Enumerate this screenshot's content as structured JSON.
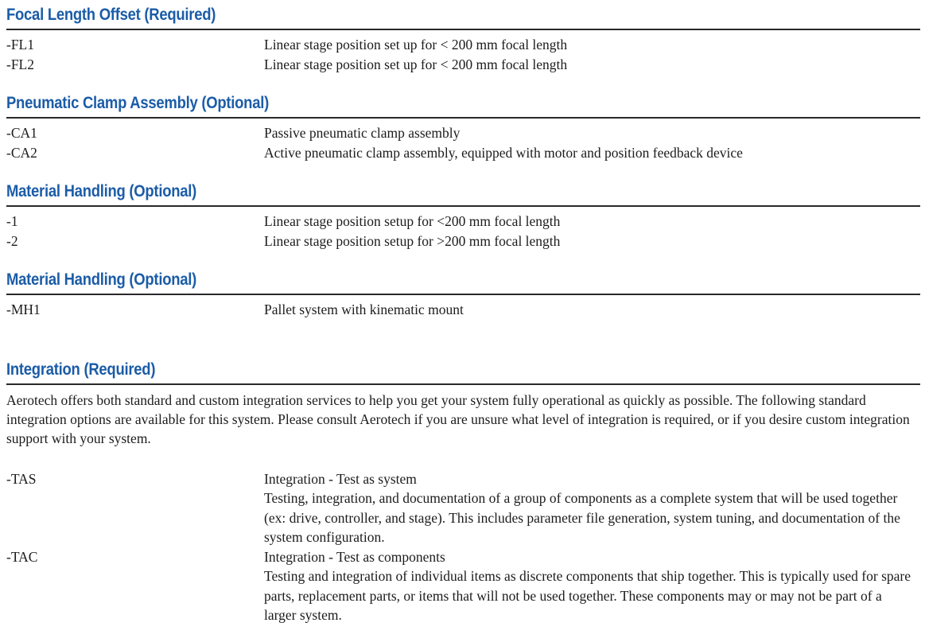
{
  "page": {
    "heading_color": "#1b5ca8",
    "rule_color": "#29292b",
    "body_text_color": "#1c1c1c"
  },
  "sections": [
    {
      "title": "Focal Length Offset (Required)",
      "options": [
        {
          "code": "-FL1",
          "desc": [
            "Linear stage position set up for < 200 mm focal length"
          ]
        },
        {
          "code": "-FL2",
          "desc": [
            "Linear stage position set up for < 200 mm focal length"
          ]
        }
      ]
    },
    {
      "title": "Pneumatic Clamp Assembly (Optional)",
      "options": [
        {
          "code": "-CA1",
          "desc": [
            "Passive pneumatic clamp assembly"
          ]
        },
        {
          "code": "-CA2",
          "desc": [
            "Active pneumatic clamp assembly, equipped with motor and position feedback device"
          ]
        }
      ]
    },
    {
      "title": "Material Handling (Optional)",
      "options": [
        {
          "code": "-1",
          "desc": [
            "Linear stage position setup for <200 mm focal length"
          ]
        },
        {
          "code": "-2",
          "desc": [
            "Linear stage position setup for >200 mm focal length"
          ]
        }
      ]
    },
    {
      "title": "Material Handling (Optional)",
      "options": [
        {
          "code": "-MH1",
          "desc": [
            "Pallet system with kinematic mount"
          ]
        }
      ]
    },
    {
      "title": "Integration (Required)",
      "intro": "Aerotech offers both standard and custom integration services to help you get your system fully operational as quickly as possible. The following standard integration options are available for this system. Please consult Aerotech if you are unsure what level of integration is required, or if you desire custom integration support with your system.",
      "options": [
        {
          "code": "-TAS",
          "desc": [
            "Integration - Test as system",
            "Testing, integration, and documentation of a group of components as a complete system that will be used together (ex: drive, controller, and stage). This includes parameter file generation, system tuning, and documentation of the system configuration."
          ]
        },
        {
          "code": "-TAC",
          "desc": [
            "Integration - Test as components",
            "Testing and integration of individual items as discrete components that ship together. This is typically used for spare parts, replacement parts, or items that will not be used together. These components may or may not be part of a larger system."
          ]
        }
      ]
    }
  ]
}
